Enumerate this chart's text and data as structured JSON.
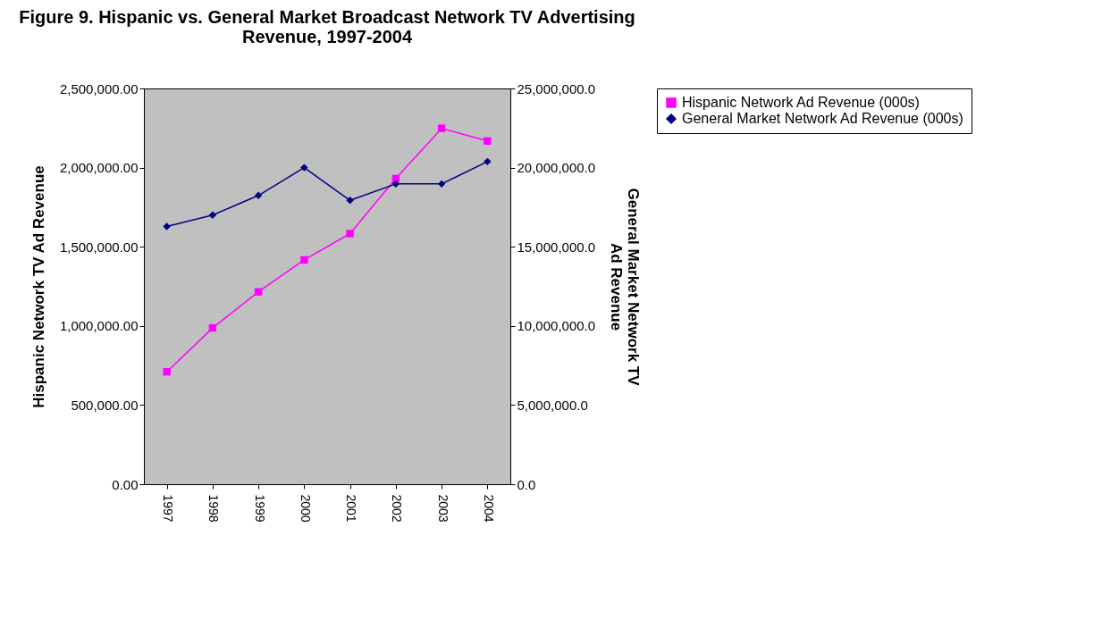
{
  "chart_data": {
    "type": "line",
    "title": "Figure 9. Hispanic vs. General Market Broadcast Network TV Advertising Revenue, 1997-2004",
    "ylabel": "Hispanic Network TV Ad Revenue",
    "y2label": "General Market Network TV Ad Revenue",
    "categories": [
      "1997",
      "1998",
      "1999",
      "2000",
      "2001",
      "2002",
      "2003",
      "2004"
    ],
    "series": [
      {
        "name": "Hispanic Network Ad Revenue (000s)",
        "color": "#ff00ff",
        "marker": "square",
        "values": [
          710000,
          987000,
          1215000,
          1417000,
          1583000,
          1931000,
          2248000,
          2168000
        ]
      },
      {
        "name": "General Market Network Ad Revenue (000s)",
        "color": "#000080",
        "marker": "diamond",
        "axis": "y2",
        "values": [
          16280000,
          17000000,
          18240000,
          20000000,
          17930000,
          18970000,
          18970000,
          20380000
        ]
      }
    ],
    "ylim": [
      0,
      2500000
    ],
    "yticks": [
      {
        "value": 0,
        "label": "0.00"
      },
      {
        "value": 500000,
        "label": "500,000.00"
      },
      {
        "value": 1000000,
        "label": "1,000,000.00"
      },
      {
        "value": 1500000,
        "label": "1,500,000.00"
      },
      {
        "value": 2000000,
        "label": "2,000,000.00"
      },
      {
        "value": 2500000,
        "label": "2,500,000.00"
      }
    ],
    "y2lim": [
      0,
      25000000
    ],
    "y2ticks": [
      {
        "value": 0,
        "label": "0.0"
      },
      {
        "value": 5000000,
        "label": "5,000,000.0"
      },
      {
        "value": 10000000,
        "label": "10,000,000.0"
      },
      {
        "value": 15000000,
        "label": "15,000,000.0"
      },
      {
        "value": 20000000,
        "label": "20,000,000.0"
      },
      {
        "value": 25000000,
        "label": "25,000,000.0"
      }
    ],
    "grid": false,
    "legend": "right",
    "line_style": "solid"
  }
}
